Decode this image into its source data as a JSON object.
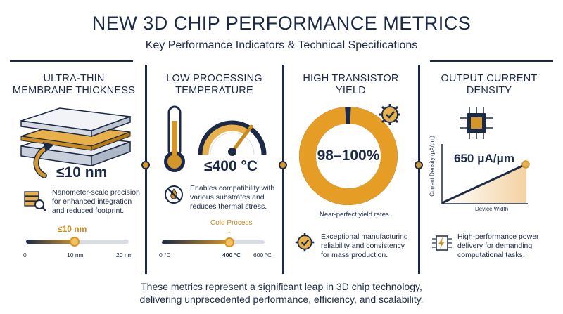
{
  "header": {
    "title": "NEW 3D CHIP PERFORMANCE METRICS",
    "subtitle": "Key Performance Indicators & Technical Specifications"
  },
  "colors": {
    "navy": "#1c2a47",
    "accent": "#d4962a",
    "light": "#d9dde3"
  },
  "columns": [
    {
      "heading_line1": "ULTRA-THIN",
      "heading_line2": "MEMBRANE THICKNESS",
      "value": "≤10 nm",
      "icon": "magnifier-stack-icon",
      "desc_line1": "Nanometer-scale precision",
      "desc_line2": "for enhanced integration",
      "desc_line3": "and reduced footprint.",
      "scale": {
        "marker_label": "≤10 nm",
        "tick_min": "0",
        "tick_mid": "10 nm",
        "tick_max": "20 nm",
        "level": 0.5
      }
    },
    {
      "heading_line1": "LOW PROCESSING",
      "heading_line2": "TEMPERATURE",
      "value": "≤400 °C",
      "icon": "no-fire-icon",
      "desc_line1": "Enables compatibility with",
      "desc_line2": "various substrates and",
      "desc_line3": "reduces thermal stress.",
      "scale": {
        "marker_label": "Cold Process",
        "tick_min": "0 °C",
        "tick_mid": "400 °C",
        "tick_max": "600 °C",
        "level": 0.667
      }
    },
    {
      "heading_line1": "HIGH TRANSISTOR",
      "heading_line2": "YIELD",
      "value": "98–100%",
      "yield_fraction": 0.98,
      "note": "Near-perfect yield rates.",
      "icon": "gear-check-icon",
      "desc_line1": "Exceptional manufacturing",
      "desc_line2": "reliability and consistency",
      "desc_line3": "for mass production."
    },
    {
      "heading_line1": "OUTPUT CURRENT",
      "heading_line2": "DENSITY",
      "value": "650 μA/μm",
      "icon": "circuit-power-icon",
      "ylabel": "Current Density (μA/μm)",
      "xlabel": "Device Width",
      "desc_line1": "High-performance power",
      "desc_line2": "delivery for demanding",
      "desc_line3": "computational tasks."
    }
  ],
  "footer": {
    "line1": "These metrics represent a significant leap in 3D chip technology,",
    "line2": "delivering unprecedented performance, efficiency, and scalability."
  }
}
